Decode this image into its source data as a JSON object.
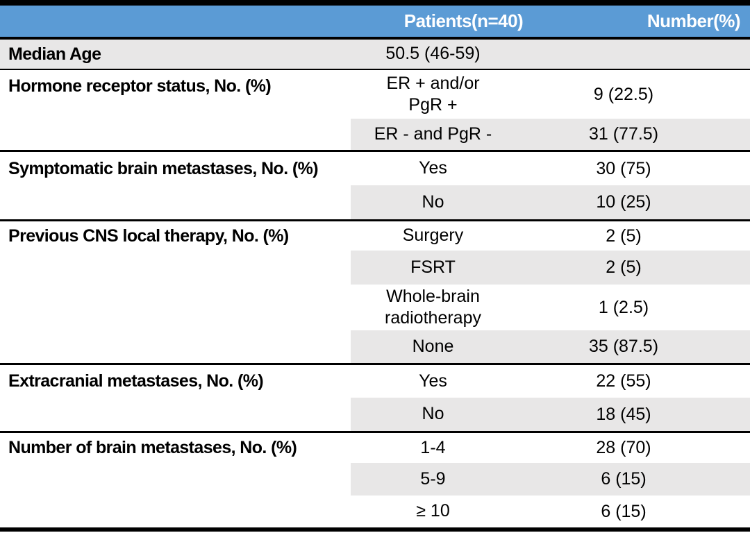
{
  "colors": {
    "header_bg": "#5B9BD5",
    "header_text": "#FFFFFF",
    "band_gray": "#E8E7E7",
    "border_black": "#000000"
  },
  "header": {
    "patients": "Patients(n=40)",
    "number": "Number(%)"
  },
  "median_age": {
    "label": "Median Age",
    "value": "50.5 (46-59)",
    "number": ""
  },
  "sections": [
    {
      "label": "Hormone receptor status, No. (%)",
      "rows": [
        {
          "value": "ER + and/or\nPgR +",
          "number": "9 (22.5)"
        },
        {
          "value": "ER - and PgR -",
          "number": "31 (77.5)"
        }
      ]
    },
    {
      "label": "Symptomatic brain metastases, No. (%)",
      "rows": [
        {
          "value": "Yes",
          "number": "30 (75)"
        },
        {
          "value": "No",
          "number": "10 (25)"
        }
      ]
    },
    {
      "label": "Previous CNS local therapy, No. (%)",
      "rows": [
        {
          "value": "Surgery",
          "number": "2 (5)"
        },
        {
          "value": "FSRT",
          "number": "2 (5)"
        },
        {
          "value": "Whole-brain\nradiotherapy",
          "number": "1 (2.5)"
        },
        {
          "value": "None",
          "number": "35 (87.5)"
        }
      ]
    },
    {
      "label": "Extracranial metastases, No. (%)",
      "rows": [
        {
          "value": "Yes",
          "number": "22 (55)"
        },
        {
          "value": "No",
          "number": "18 (45)"
        }
      ]
    },
    {
      "label": "Number of brain metastases, No. (%)",
      "rows": [
        {
          "value": "1-4",
          "number": "28 (70)"
        },
        {
          "value": "5-9",
          "number": "6 (15)"
        },
        {
          "value": "≥ 10",
          "number": "6 (15)"
        }
      ]
    }
  ]
}
